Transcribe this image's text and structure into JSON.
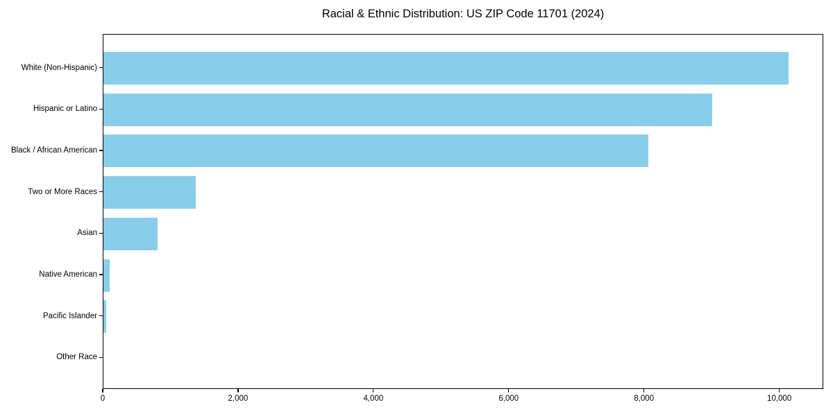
{
  "chart_data": {
    "type": "bar",
    "orientation": "horizontal",
    "title": "Racial & Ethnic Distribution: US ZIP Code 11701 (2024)",
    "categories": [
      "White (Non-Hispanic)",
      "Hispanic or Latino",
      "Black / African American",
      "Two or More Races",
      "Asian",
      "Native American",
      "Pacific Islander",
      "Other Race"
    ],
    "values": [
      10130,
      9000,
      8050,
      1360,
      800,
      90,
      45,
      0
    ],
    "title_color": "#000000",
    "xlabel": "",
    "ylabel": "",
    "xlim": [
      0,
      10650
    ],
    "x_ticks": [
      0,
      2000,
      4000,
      6000,
      8000,
      10000
    ],
    "x_tick_labels": [
      "0",
      "2,000",
      "4,000",
      "6,000",
      "8,000",
      "10,000"
    ],
    "bar_color": "#87CEEB",
    "background_color": "#FFFFFF",
    "grid": false,
    "legend_position": "none"
  }
}
